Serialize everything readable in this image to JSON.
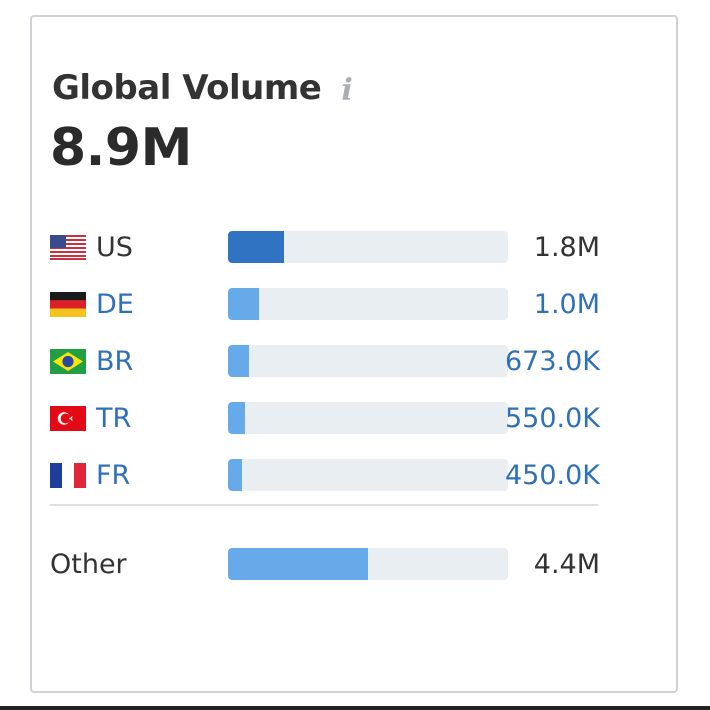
{
  "card": {
    "title": "Global Volume",
    "info_icon": "info-icon",
    "total": "8.9M"
  },
  "countries": [
    {
      "code": "US",
      "value": "1.8M",
      "share": 0.2,
      "flag": "us-flag-icon",
      "link": false
    },
    {
      "code": "DE",
      "value": "1.0M",
      "share": 0.11,
      "flag": "de-flag-icon",
      "link": true
    },
    {
      "code": "BR",
      "value": "673.0K",
      "share": 0.075,
      "flag": "br-flag-icon",
      "link": true
    },
    {
      "code": "TR",
      "value": "550.0K",
      "share": 0.062,
      "flag": "tr-flag-icon",
      "link": true
    },
    {
      "code": "FR",
      "value": "450.0K",
      "share": 0.05,
      "flag": "fr-flag-icon",
      "link": true
    }
  ],
  "other": {
    "label": "Other",
    "value": "4.4M",
    "share": 0.5
  },
  "colors": {
    "bar_primary": "#2f73c2",
    "bar_secondary": "#66aaea",
    "bar_track": "#e9eef2",
    "link": "#2f70b8"
  }
}
